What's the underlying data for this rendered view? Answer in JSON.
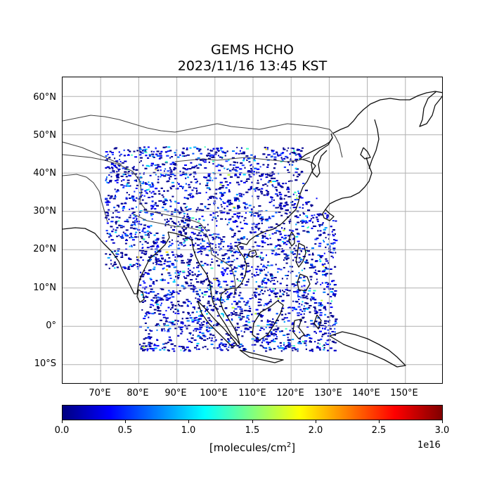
{
  "title": {
    "line1": "GEMS HCHO",
    "line2": "2023/11/16 13:45 KST"
  },
  "map": {
    "lat_ticks": [
      "60°N",
      "50°N",
      "40°N",
      "30°N",
      "20°N",
      "10°N",
      "0°",
      "10°S"
    ],
    "lon_ticks": [
      "70°E",
      "80°E",
      "90°E",
      "100°E",
      "110°E",
      "120°E",
      "130°E",
      "140°E",
      "150°E"
    ],
    "colors": {
      "coast": "#111111",
      "border": "#444444",
      "grid": "#b0b0b0"
    }
  },
  "colorbar": {
    "ticks": [
      "0.0",
      "0.5",
      "1.0",
      "1.5",
      "2.0",
      "2.5",
      "3.0"
    ],
    "exponent": "1e16",
    "units_base": "[molecules/cm",
    "units_sup": "2",
    "units_end": "]",
    "colormap": "jet",
    "stops": [
      "#000080",
      "#0000ff",
      "#0080ff",
      "#00ffff",
      "#80ff80",
      "#ffff00",
      "#ff8000",
      "#ff0000",
      "#800000"
    ]
  }
}
